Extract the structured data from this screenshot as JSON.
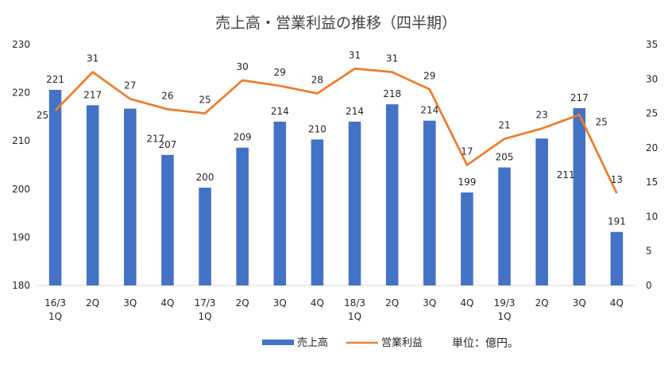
{
  "chart_data": {
    "type": "bar",
    "title": "売上高・営業利益の推移（四半期）",
    "categories": [
      [
        "16/3",
        "1Q"
      ],
      [
        "2Q"
      ],
      [
        "3Q"
      ],
      [
        "4Q"
      ],
      [
        "17/3",
        "1Q"
      ],
      [
        "2Q"
      ],
      [
        "3Q"
      ],
      [
        "4Q"
      ],
      [
        "18/3",
        "1Q"
      ],
      [
        "2Q"
      ],
      [
        "3Q"
      ],
      [
        "4Q"
      ],
      [
        "19/3",
        "1Q"
      ],
      [
        "2Q"
      ],
      [
        "3Q"
      ],
      [
        "4Q"
      ]
    ],
    "series": [
      {
        "name": "売上高",
        "type": "bar",
        "axis": "left",
        "color": "#4472C4",
        "values": [
          220.6,
          217.4,
          216.7,
          207.1,
          200.3,
          208.6,
          214.0,
          210.3,
          214.0,
          217.6,
          214.2,
          199.3,
          204.5,
          210.5,
          216.8,
          191.1
        ],
        "labels": [
          "221",
          "217",
          "217",
          "207",
          "200",
          "209",
          "214",
          "210",
          "214",
          "218",
          "214",
          "199",
          "205",
          "211",
          "217",
          "191"
        ]
      },
      {
        "name": "営業利益",
        "type": "line",
        "axis": "right",
        "color": "#ED7D31",
        "values": [
          25.4,
          31.0,
          27.1,
          25.6,
          25.0,
          29.8,
          29.0,
          27.9,
          31.5,
          31.0,
          28.5,
          17.5,
          21.3,
          22.8,
          24.8,
          13.4
        ],
        "labels": [
          "25",
          "31",
          "27",
          "26",
          "25",
          "30",
          "29",
          "28",
          "31",
          "31",
          "29",
          "17",
          "21",
          "23",
          "25",
          "13"
        ]
      }
    ],
    "y_left": {
      "min": 180,
      "max": 230,
      "step": 10,
      "ticks": [
        "180",
        "190",
        "200",
        "210",
        "220",
        "230"
      ]
    },
    "y_right": {
      "min": 0,
      "max": 35,
      "step": 5,
      "ticks": [
        "0",
        "5",
        "10",
        "15",
        "20",
        "25",
        "30",
        "35"
      ]
    },
    "grid": false,
    "legend": {
      "position": "bottom",
      "items": [
        {
          "label": "売上高",
          "kind": "bar",
          "color": "#4472C4"
        },
        {
          "label": "営業利益",
          "kind": "line",
          "color": "#ED7D31"
        }
      ]
    },
    "unit_note": "単位：億円。"
  }
}
